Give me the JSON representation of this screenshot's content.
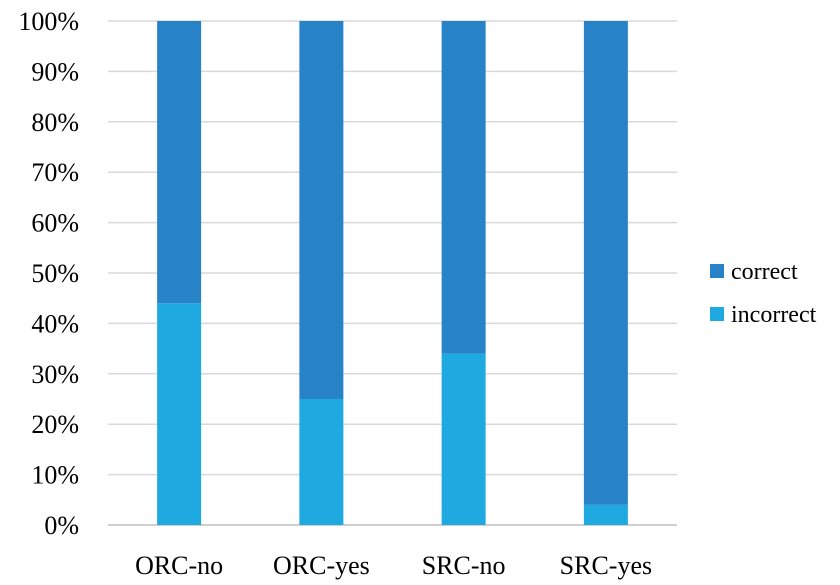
{
  "chart_data": {
    "type": "bar",
    "stacked": true,
    "normalized": true,
    "categories": [
      "ORC-no",
      "ORC-yes",
      "SRC-no",
      "SRC-yes"
    ],
    "series": [
      {
        "name": "incorrect",
        "values": [
          44,
          25,
          34,
          4
        ],
        "color": "#1EA9E1"
      },
      {
        "name": "correct",
        "values": [
          56,
          75,
          66,
          96
        ],
        "color": "#2782C8"
      }
    ],
    "ylim": [
      0,
      100
    ],
    "yticks": [
      "0%",
      "10%",
      "20%",
      "30%",
      "40%",
      "50%",
      "60%",
      "70%",
      "80%",
      "90%",
      "100%"
    ],
    "grid": true,
    "legend": {
      "position": "right",
      "entries": [
        "correct",
        "incorrect"
      ]
    },
    "title": "",
    "xlabel": "",
    "ylabel": ""
  }
}
